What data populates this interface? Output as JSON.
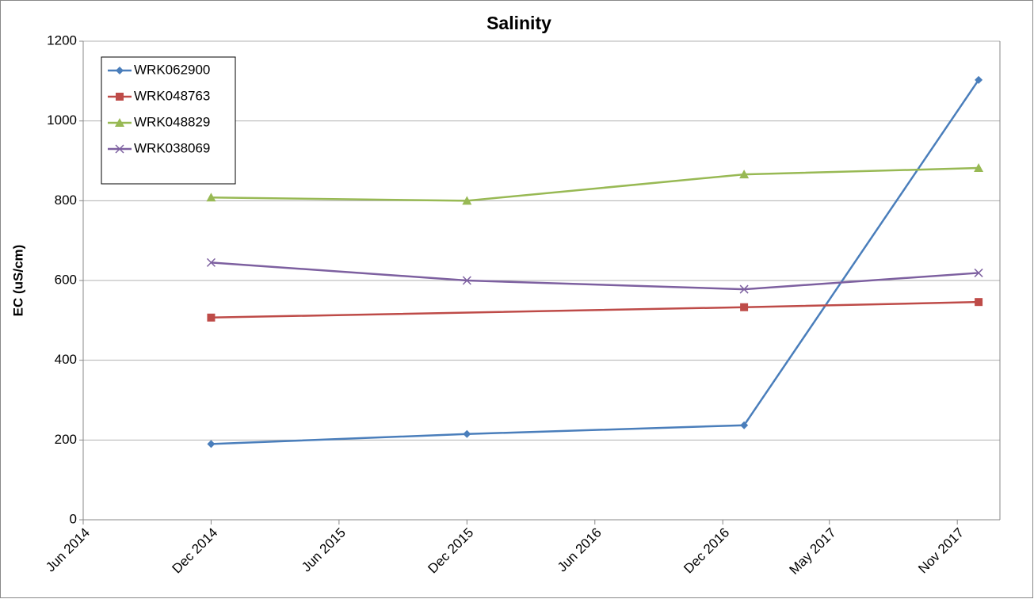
{
  "chart_data": {
    "type": "line",
    "title": "Salinity",
    "y_label": "EC (uS/cm)",
    "xticks": [
      {
        "value": "2014-06",
        "label": "Jun 2014"
      },
      {
        "value": "2014-12",
        "label": "Dec 2014"
      },
      {
        "value": "2015-06",
        "label": "Jun 2015"
      },
      {
        "value": "2015-12",
        "label": "Dec 2015"
      },
      {
        "value": "2016-06",
        "label": "Jun 2016"
      },
      {
        "value": "2016-12",
        "label": "Dec 2016"
      },
      {
        "value": "2017-05",
        "label": "May 2017"
      },
      {
        "value": "2017-11",
        "label": "Nov 2017"
      }
    ],
    "xlim": [
      "2014-06",
      "2018-01"
    ],
    "ylim": [
      0,
      1200
    ],
    "yticks": [
      0,
      200,
      400,
      600,
      800,
      1000,
      1200
    ],
    "grid": true,
    "legend": "upper left",
    "series": [
      {
        "name": "WRK062900",
        "color": "#4a7ebb",
        "marker": "diamond",
        "x": [
          "2014-12",
          "2015-12",
          "2017-01",
          "2017-12"
        ],
        "values": [
          190,
          215,
          237,
          1103
        ]
      },
      {
        "name": "WRK048763",
        "color": "#be4b48",
        "marker": "square",
        "x": [
          "2014-12",
          "2017-01",
          "2017-12"
        ],
        "values": [
          507,
          533,
          546
        ]
      },
      {
        "name": "WRK048829",
        "color": "#98b954",
        "marker": "triangle",
        "x": [
          "2014-12",
          "2015-12",
          "2017-01",
          "2017-12"
        ],
        "values": [
          808,
          800,
          866,
          882
        ]
      },
      {
        "name": "WRK038069",
        "color": "#7d60a0",
        "marker": "x",
        "x": [
          "2014-12",
          "2015-12",
          "2017-01",
          "2017-12"
        ],
        "values": [
          645,
          600,
          578,
          619
        ]
      }
    ]
  }
}
